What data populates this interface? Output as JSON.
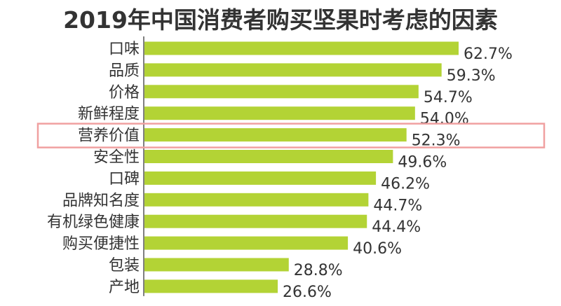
{
  "chart_data": {
    "type": "bar",
    "orientation": "horizontal",
    "title": "2019年中国消费者购买坚果时考虑的因素",
    "categories": [
      "口味",
      "品质",
      "价格",
      "新鲜程度",
      "营养价值",
      "安全性",
      "口碑",
      "品牌知名度",
      "有机绿色健康",
      "购买便捷性",
      "包装",
      "产地"
    ],
    "values": [
      62.7,
      59.3,
      54.7,
      54.0,
      52.3,
      49.6,
      46.2,
      44.7,
      44.4,
      40.6,
      28.8,
      26.6
    ],
    "value_labels": [
      "62.7%",
      "59.3%",
      "54.7%",
      "54.0%",
      "52.3%",
      "49.6%",
      "46.2%",
      "44.7%",
      "44.4%",
      "40.6%",
      "28.8%",
      "26.6%"
    ],
    "unit": "%",
    "highlighted_category": "营养价值",
    "xlim": [
      0,
      100
    ],
    "grid": false,
    "colors": {
      "bar": "#b3d335",
      "title": "#333333",
      "labels": "#333333",
      "axis": "#555555",
      "highlight_box": "#f0a0a0"
    }
  }
}
